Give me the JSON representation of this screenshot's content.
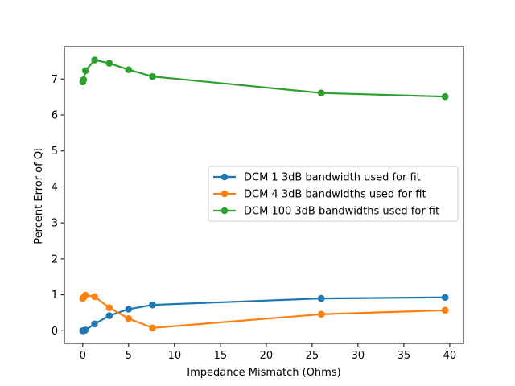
{
  "chart_data": {
    "type": "line",
    "xlabel": "Impedance Mismatch (Ohms)",
    "ylabel": "Percent Error of Qi",
    "xlim": [
      -2,
      41.5
    ],
    "ylim": [
      -0.35,
      7.9
    ],
    "xticks": [
      0,
      5,
      10,
      15,
      20,
      25,
      30,
      35,
      40
    ],
    "yticks": [
      0,
      1,
      2,
      3,
      4,
      5,
      6,
      7
    ],
    "grid": false,
    "legend_position": "center-right",
    "series": [
      {
        "name": "DCM 1 3dB bandwidth used for fit",
        "color": "#1f77b4",
        "x": [
          0,
          0.1,
          0.3,
          1.3,
          2.9,
          5.0,
          7.6,
          26.0,
          39.5
        ],
        "y": [
          0.0,
          0.0,
          0.02,
          0.19,
          0.42,
          0.6,
          0.72,
          0.9,
          0.93
        ]
      },
      {
        "name": "DCM 4 3dB bandwidths used for fit",
        "color": "#ff7f0e",
        "x": [
          0,
          0.1,
          0.3,
          1.3,
          2.9,
          5.0,
          7.6,
          26.0,
          39.5
        ],
        "y": [
          0.9,
          0.93,
          0.99,
          0.95,
          0.64,
          0.34,
          0.08,
          0.46,
          0.57
        ]
      },
      {
        "name": "DCM 100 3dB bandwidths used for fit",
        "color": "#2ca02c",
        "x": [
          0,
          0.1,
          0.3,
          1.3,
          2.9,
          5.0,
          7.6,
          26.0,
          39.5
        ],
        "y": [
          6.92,
          6.98,
          7.23,
          7.53,
          7.44,
          7.26,
          7.07,
          6.61,
          6.51
        ]
      }
    ]
  }
}
